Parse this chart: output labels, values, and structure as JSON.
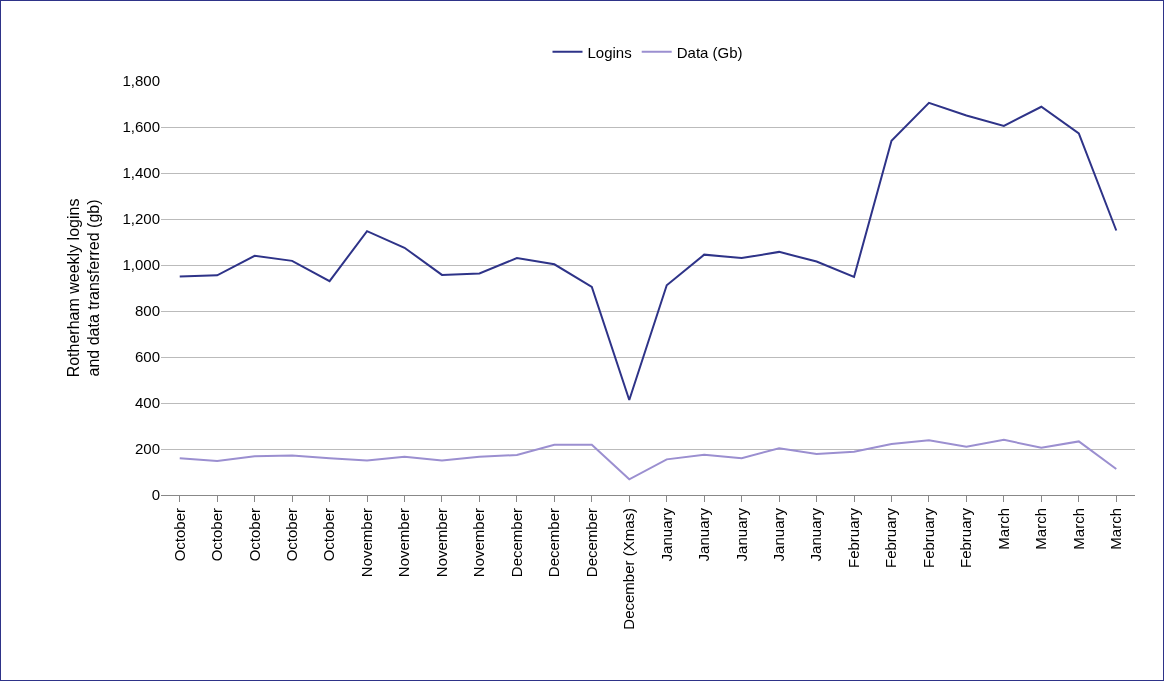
{
  "chart_data": {
    "type": "line",
    "ylabel": "Rotherham weekly logins\nand data transferred (gb)",
    "categories": [
      "October",
      "October",
      "October",
      "October",
      "October",
      "November",
      "November",
      "November",
      "November",
      "December",
      "December",
      "December",
      "December (Xmas)",
      "January",
      "January",
      "January",
      "January",
      "January",
      "February",
      "February",
      "February",
      "February",
      "March",
      "March",
      "March",
      "March"
    ],
    "series": [
      {
        "name": "Logins",
        "color": "#2e3388",
        "values": [
          950,
          955,
          1040,
          1018,
          930,
          1147,
          1075,
          957,
          963,
          1030,
          1003,
          905,
          413,
          912,
          1045,
          1030,
          1057,
          1015,
          948,
          1540,
          1705,
          1650,
          1605,
          1688,
          1572,
          1150
        ]
      },
      {
        "name": "Data (Gb)",
        "color": "#9b8fd0",
        "values": [
          160,
          148,
          168,
          172,
          160,
          150,
          166,
          150,
          166,
          174,
          218,
          218,
          68,
          155,
          175,
          160,
          203,
          178,
          188,
          222,
          238,
          210,
          240,
          205,
          233,
          113
        ]
      }
    ],
    "ylim": [
      0,
      1800
    ],
    "yticks": [
      0,
      200,
      400,
      600,
      800,
      {
        "value": 1000,
        "label": "1,000"
      },
      {
        "value": 1200,
        "label": "1,200"
      },
      {
        "value": 1400,
        "label": "1,400"
      },
      {
        "value": 1600,
        "label": "1,600"
      },
      {
        "value": 1800,
        "label": "1,800"
      }
    ],
    "grid": "y",
    "legend": "top",
    "marker": "none",
    "line_style": "solid"
  }
}
